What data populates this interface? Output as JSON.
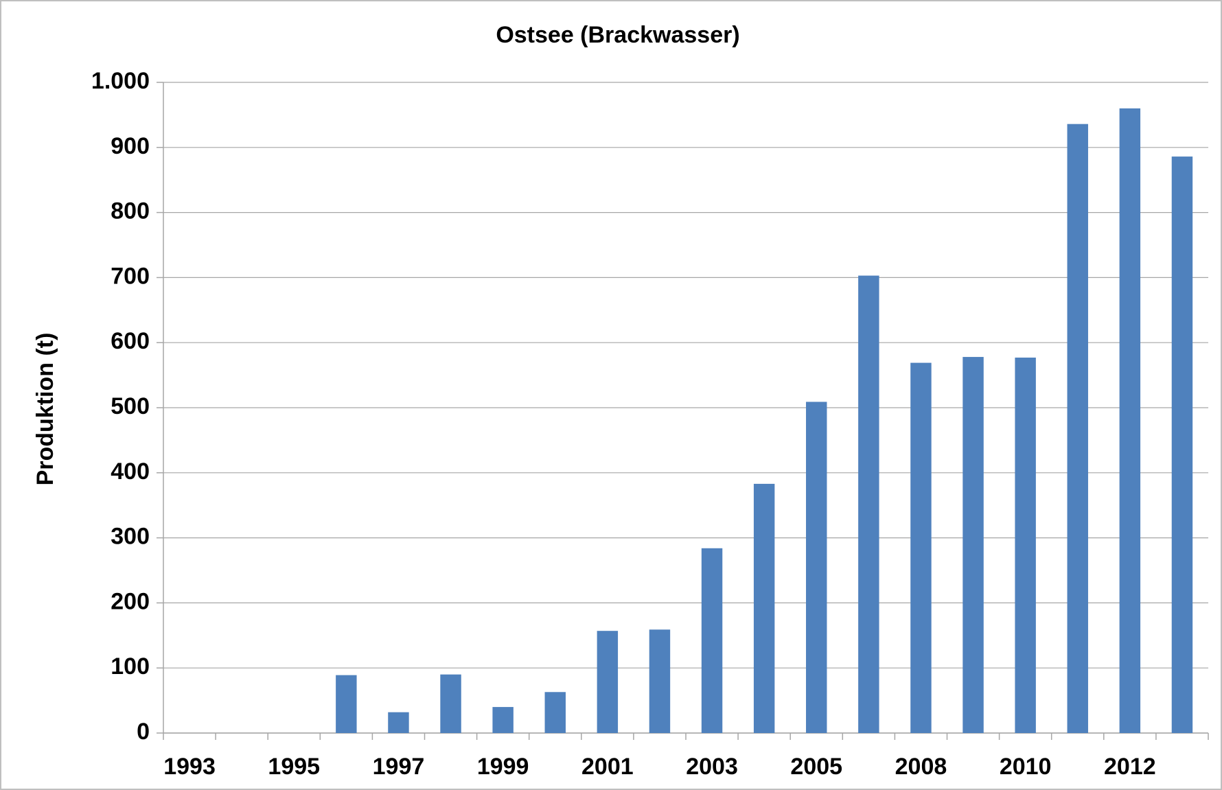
{
  "chart_data": {
    "type": "bar",
    "title": "Ostsee (Brackwasser)",
    "y_label": "Produktion (t)",
    "categories": [
      "1993",
      null,
      "1995",
      null,
      "1997",
      null,
      "1999",
      null,
      "2001",
      null,
      "2003",
      null,
      "2005",
      null,
      "2008",
      null,
      "2010",
      null,
      "2012",
      null
    ],
    "values": [
      0,
      0,
      0,
      89,
      32,
      90,
      40,
      63,
      157,
      159,
      284,
      383,
      509,
      703,
      569,
      578,
      577,
      936,
      960,
      886
    ],
    "color": "#4f81bd",
    "ylim": [
      0,
      1000
    ],
    "yticks": [
      0,
      100,
      200,
      300,
      400,
      500,
      600,
      700,
      800,
      900,
      {
        "value": 1000,
        "label": "1.000"
      }
    ],
    "grid": true
  }
}
